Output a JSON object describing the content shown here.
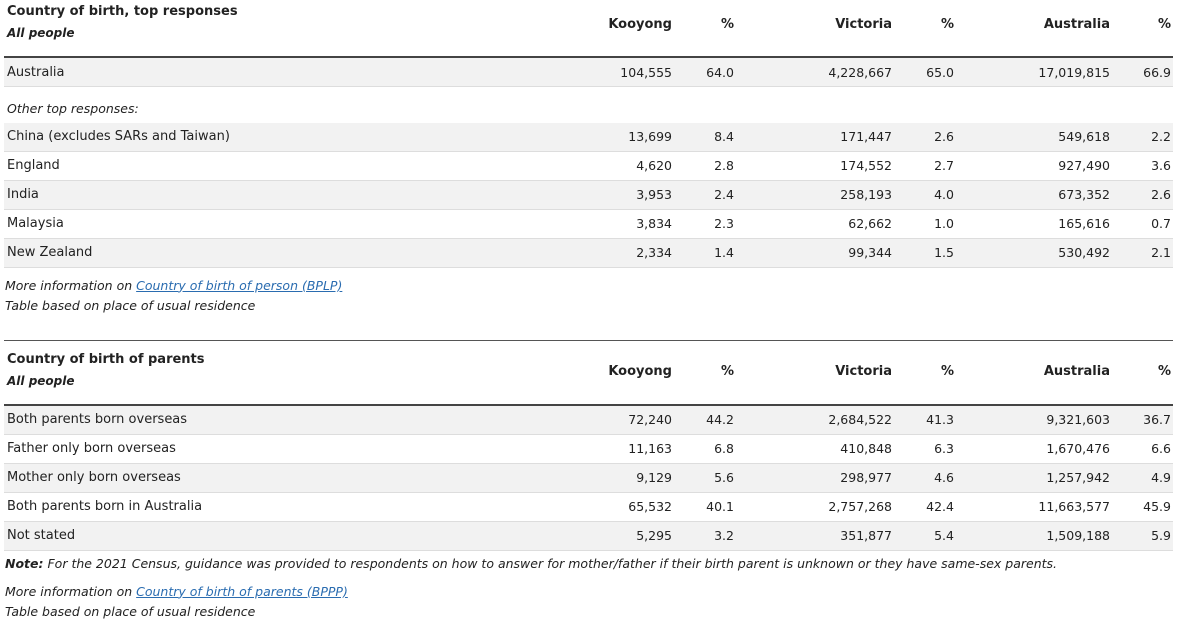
{
  "cob": {
    "title": "Country of birth, top responses",
    "subtitle": "All people",
    "headers": [
      "Kooyong",
      "%",
      "Victoria",
      "%",
      "Australia",
      "%"
    ],
    "top_row": {
      "label": "Australia",
      "values": [
        "104,555",
        "64.0",
        "4,228,667",
        "65.0",
        "17,019,815",
        "66.9"
      ]
    },
    "other_label": "Other top responses:",
    "rows": [
      {
        "label": "China (excludes SARs and Taiwan)",
        "values": [
          "13,699",
          "8.4",
          "171,447",
          "2.6",
          "549,618",
          "2.2"
        ]
      },
      {
        "label": "England",
        "values": [
          "4,620",
          "2.8",
          "174,552",
          "2.7",
          "927,490",
          "3.6"
        ]
      },
      {
        "label": "India",
        "values": [
          "3,953",
          "2.4",
          "258,193",
          "4.0",
          "673,352",
          "2.6"
        ]
      },
      {
        "label": "Malaysia",
        "values": [
          "3,834",
          "2.3",
          "62,662",
          "1.0",
          "165,616",
          "0.7"
        ]
      },
      {
        "label": "New Zealand",
        "values": [
          "2,334",
          "1.4",
          "99,344",
          "1.5",
          "530,492",
          "2.1"
        ]
      }
    ],
    "more_info_prefix": "More information on ",
    "more_info_link": "Country of birth of person (BPLP)",
    "basis": "Table based on place of usual residence"
  },
  "parents": {
    "title": "Country of birth of parents",
    "subtitle": "All people",
    "headers": [
      "Kooyong",
      "%",
      "Victoria",
      "%",
      "Australia",
      "%"
    ],
    "rows": [
      {
        "label": "Both parents born overseas",
        "values": [
          "72,240",
          "44.2",
          "2,684,522",
          "41.3",
          "9,321,603",
          "36.7"
        ]
      },
      {
        "label": "Father only born overseas",
        "values": [
          "11,163",
          "6.8",
          "410,848",
          "6.3",
          "1,670,476",
          "6.6"
        ]
      },
      {
        "label": "Mother only born overseas",
        "values": [
          "9,129",
          "5.6",
          "298,977",
          "4.6",
          "1,257,942",
          "4.9"
        ]
      },
      {
        "label": "Both parents born in Australia",
        "values": [
          "65,532",
          "40.1",
          "2,757,268",
          "42.4",
          "11,663,577",
          "45.9"
        ]
      },
      {
        "label": "Not stated",
        "values": [
          "5,295",
          "3.2",
          "351,877",
          "5.4",
          "1,509,188",
          "5.9"
        ]
      }
    ],
    "note_label": "Note:",
    "note_text": " For the 2021 Census, guidance was provided to respondents on how to answer for mother/father if their birth parent is unknown or they have same-sex parents.",
    "more_info_prefix": "More information on ",
    "more_info_link": "Country of birth of parents (BPPP)",
    "basis": "Table based on place of usual residence"
  }
}
